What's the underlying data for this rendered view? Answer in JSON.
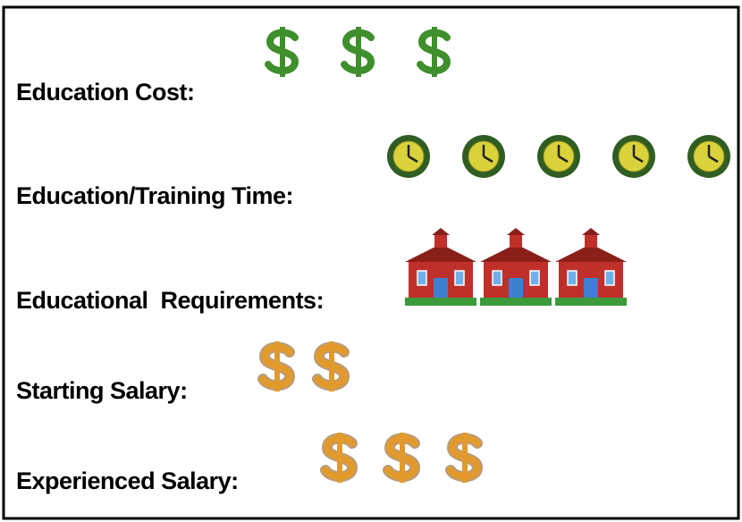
{
  "rows": [
    {
      "label": "Education Cost:",
      "count": 3,
      "icon": "dollar",
      "color": "#3f8f2c"
    },
    {
      "label": "Education/Training Time:",
      "count": 5,
      "icon": "clock",
      "color": "#2f5d22"
    },
    {
      "label": "Educational  Requirements:",
      "count": 3,
      "icon": "school",
      "color": "#c0302a"
    },
    {
      "label": "Starting Salary:",
      "count": 2,
      "icon": "dollar",
      "color": "#e39a2c"
    },
    {
      "label": "Experienced Salary:",
      "count": 3,
      "icon": "dollar",
      "color": "#e39a2c"
    }
  ]
}
